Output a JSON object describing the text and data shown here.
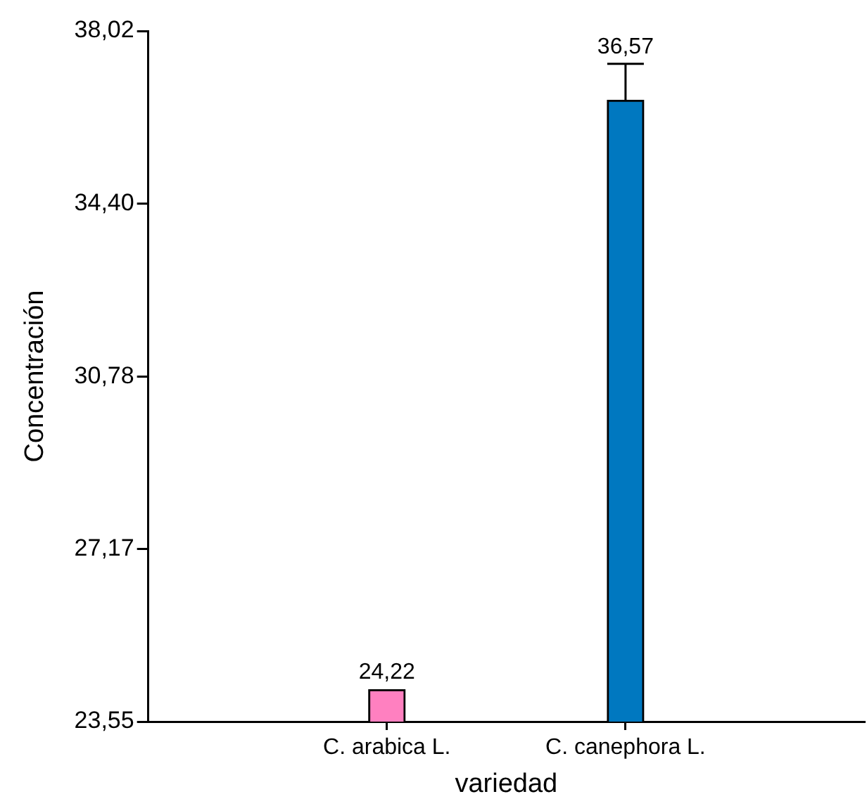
{
  "chart_data": {
    "type": "bar",
    "xlabel": "variedad",
    "ylabel": "Concentración",
    "categories": [
      "C. arabica L.",
      "C. canephora L."
    ],
    "values": [
      24.22,
      36.57
    ],
    "colors": [
      "#ff80c0",
      "#0078c0"
    ],
    "errors": [
      null,
      0.76
    ],
    "value_labels": [
      "24,22",
      "36,57"
    ],
    "ylim": [
      23.55,
      38.02
    ],
    "yticks": [
      {
        "value": 23.55,
        "label": "23,55"
      },
      {
        "value": 27.17,
        "label": "27,17"
      },
      {
        "value": 30.78,
        "label": "30,78"
      },
      {
        "value": 34.4,
        "label": "34,40"
      },
      {
        "value": 38.02,
        "label": "38,02"
      }
    ],
    "grid": false,
    "legend": false
  }
}
